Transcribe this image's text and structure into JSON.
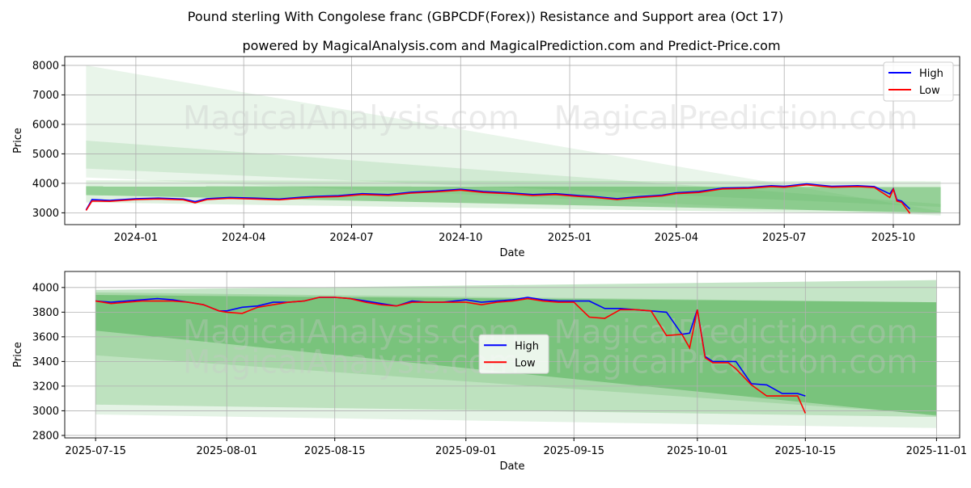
{
  "title": "Pound sterling With Congolese franc (GBPCDF(Forex)) Resistance and Support area (Oct 17)",
  "subtitle": "powered by MagicalAnalysis.com and MagicalPrediction.com and Predict-Price.com",
  "watermark": [
    "MagicalAnalysis.com",
    "MagicalPrediction.com"
  ],
  "colors": {
    "high": "#0000ff",
    "low": "#ff0000",
    "band": "#4caf50"
  },
  "chart_data": [
    {
      "type": "line",
      "xlabel": "Date",
      "ylabel": "Price",
      "xlim": [
        "2023-11-02",
        "2025-11-26"
      ],
      "ylim": [
        2600,
        8300
      ],
      "grid": true,
      "legend": "top-right",
      "x_ticks": [
        "2024-01",
        "2024-04",
        "2024-07",
        "2024-10",
        "2025-01",
        "2025-04",
        "2025-07",
        "2025-10"
      ],
      "x_tick_dates": [
        "2024-01-01",
        "2024-04-01",
        "2024-07-01",
        "2024-10-01",
        "2025-01-01",
        "2025-04-01",
        "2025-07-01",
        "2025-10-01"
      ],
      "y_ticks": [
        3000,
        4000,
        5000,
        6000,
        7000,
        8000
      ],
      "bands": [
        {
          "x": [
            "2023-11-20",
            "2025-11-10"
          ],
          "upper": [
            8000,
            3050
          ],
          "lower": [
            4200,
            2900
          ],
          "opacity": 0.12
        },
        {
          "x": [
            "2023-11-20",
            "2025-11-10"
          ],
          "upper": [
            5450,
            3300
          ],
          "lower": [
            4500,
            3200
          ],
          "opacity": 0.15
        },
        {
          "x": [
            "2023-11-20",
            "2025-11-10"
          ],
          "upper": [
            4100,
            4070
          ],
          "lower": [
            3350,
            2950
          ],
          "opacity": 0.18
        },
        {
          "x": [
            "2023-11-20",
            "2025-11-10"
          ],
          "upper": [
            3900,
            3880
          ],
          "lower": [
            3600,
            3000
          ],
          "opacity": 0.5
        }
      ],
      "series": [
        {
          "name": "High",
          "x": [
            "2023-11-20",
            "2023-11-25",
            "2023-12-10",
            "2024-01-01",
            "2024-01-20",
            "2024-02-10",
            "2024-02-20",
            "2024-03-01",
            "2024-03-20",
            "2024-04-10",
            "2024-05-01",
            "2024-05-20",
            "2024-06-01",
            "2024-06-20",
            "2024-07-10",
            "2024-08-01",
            "2024-08-20",
            "2024-09-10",
            "2024-10-01",
            "2024-10-20",
            "2024-11-10",
            "2024-12-01",
            "2024-12-20",
            "2025-01-10",
            "2025-01-20",
            "2025-02-10",
            "2025-03-01",
            "2025-03-20",
            "2025-04-01",
            "2025-04-20",
            "2025-05-10",
            "2025-06-01",
            "2025-06-20",
            "2025-07-01",
            "2025-07-20",
            "2025-08-10",
            "2025-09-01",
            "2025-09-15",
            "2025-09-28",
            "2025-10-01",
            "2025-10-04",
            "2025-10-08",
            "2025-10-15"
          ],
          "values": [
            3100,
            3450,
            3420,
            3480,
            3500,
            3470,
            3380,
            3480,
            3520,
            3500,
            3470,
            3530,
            3560,
            3580,
            3650,
            3620,
            3700,
            3740,
            3800,
            3720,
            3680,
            3620,
            3650,
            3580,
            3560,
            3480,
            3550,
            3600,
            3680,
            3720,
            3840,
            3860,
            3920,
            3900,
            3980,
            3900,
            3920,
            3890,
            3640,
            3820,
            3440,
            3400,
            3130
          ]
        },
        {
          "name": "Low",
          "x": [
            "2023-11-20",
            "2023-11-25",
            "2023-12-10",
            "2024-01-01",
            "2024-01-20",
            "2024-02-10",
            "2024-02-20",
            "2024-03-01",
            "2024-03-20",
            "2024-04-10",
            "2024-05-01",
            "2024-05-20",
            "2024-06-01",
            "2024-06-20",
            "2024-07-10",
            "2024-08-01",
            "2024-08-20",
            "2024-09-10",
            "2024-10-01",
            "2024-10-20",
            "2024-11-10",
            "2024-12-01",
            "2024-12-20",
            "2025-01-10",
            "2025-01-20",
            "2025-02-10",
            "2025-03-01",
            "2025-03-20",
            "2025-04-01",
            "2025-04-20",
            "2025-05-10",
            "2025-06-01",
            "2025-06-20",
            "2025-07-01",
            "2025-07-20",
            "2025-08-10",
            "2025-09-01",
            "2025-09-15",
            "2025-09-28",
            "2025-10-01",
            "2025-10-04",
            "2025-10-08",
            "2025-10-15"
          ],
          "values": [
            3080,
            3400,
            3390,
            3450,
            3470,
            3440,
            3340,
            3450,
            3490,
            3470,
            3440,
            3500,
            3530,
            3550,
            3620,
            3590,
            3670,
            3710,
            3770,
            3690,
            3650,
            3590,
            3620,
            3550,
            3530,
            3450,
            3520,
            3570,
            3650,
            3690,
            3810,
            3830,
            3890,
            3870,
            3950,
            3870,
            3890,
            3860,
            3520,
            3800,
            3400,
            3360,
            2980
          ]
        }
      ]
    },
    {
      "type": "line",
      "xlabel": "Date",
      "ylabel": "Price",
      "xlim": [
        "2025-07-11",
        "2025-11-04"
      ],
      "ylim": [
        2780,
        4130
      ],
      "grid": true,
      "legend": "center",
      "x_ticks": [
        "2025-07-15",
        "2025-08-01",
        "2025-08-15",
        "2025-09-01",
        "2025-09-15",
        "2025-10-01",
        "2025-10-15",
        "2025-11-01"
      ],
      "x_tick_dates": [
        "2025-07-15",
        "2025-08-01",
        "2025-08-15",
        "2025-09-01",
        "2025-09-15",
        "2025-10-01",
        "2025-10-15",
        "2025-11-01"
      ],
      "y_ticks": [
        2800,
        3000,
        3200,
        3400,
        3600,
        3800,
        4000
      ],
      "bands": [
        {
          "x": [
            "2025-07-15",
            "2025-11-01"
          ],
          "upper": [
            3980,
            4060
          ],
          "lower": [
            2970,
            2860
          ],
          "opacity": 0.15
        },
        {
          "x": [
            "2025-07-15",
            "2025-11-01"
          ],
          "upper": [
            3960,
            3880
          ],
          "lower": [
            3050,
            2950
          ],
          "opacity": 0.25
        },
        {
          "x": [
            "2025-07-15",
            "2025-11-01"
          ],
          "upper": [
            3940,
            3880
          ],
          "lower": [
            3650,
            2960
          ],
          "opacity": 0.5
        },
        {
          "x": [
            "2025-07-15",
            "2025-11-01"
          ],
          "upper": [
            3980,
            4060
          ],
          "lower": [
            3450,
            2970
          ],
          "opacity": 0.2
        }
      ],
      "series": [
        {
          "name": "High",
          "x": [
            "2025-07-15",
            "2025-07-17",
            "2025-07-19",
            "2025-07-21",
            "2025-07-23",
            "2025-07-25",
            "2025-07-27",
            "2025-07-29",
            "2025-07-31",
            "2025-08-01",
            "2025-08-03",
            "2025-08-05",
            "2025-08-07",
            "2025-08-09",
            "2025-08-11",
            "2025-08-13",
            "2025-08-15",
            "2025-08-17",
            "2025-08-19",
            "2025-08-21",
            "2025-08-23",
            "2025-08-25",
            "2025-08-27",
            "2025-08-29",
            "2025-09-01",
            "2025-09-03",
            "2025-09-05",
            "2025-09-07",
            "2025-09-09",
            "2025-09-11",
            "2025-09-13",
            "2025-09-15",
            "2025-09-17",
            "2025-09-19",
            "2025-09-21",
            "2025-09-23",
            "2025-09-25",
            "2025-09-27",
            "2025-09-29",
            "2025-09-30",
            "2025-10-01",
            "2025-10-02",
            "2025-10-03",
            "2025-10-05",
            "2025-10-06",
            "2025-10-08",
            "2025-10-10",
            "2025-10-12",
            "2025-10-14",
            "2025-10-15"
          ],
          "values": [
            3890,
            3880,
            3890,
            3900,
            3910,
            3900,
            3880,
            3860,
            3810,
            3810,
            3840,
            3850,
            3880,
            3880,
            3890,
            3920,
            3920,
            3910,
            3890,
            3870,
            3850,
            3890,
            3880,
            3880,
            3900,
            3880,
            3890,
            3900,
            3920,
            3900,
            3890,
            3890,
            3890,
            3830,
            3830,
            3820,
            3810,
            3800,
            3620,
            3630,
            3820,
            3440,
            3400,
            3400,
            3400,
            3220,
            3210,
            3140,
            3140,
            3120
          ]
        },
        {
          "name": "Low",
          "x": [
            "2025-07-15",
            "2025-07-17",
            "2025-07-19",
            "2025-07-21",
            "2025-07-23",
            "2025-07-25",
            "2025-07-27",
            "2025-07-29",
            "2025-07-31",
            "2025-08-01",
            "2025-08-03",
            "2025-08-05",
            "2025-08-07",
            "2025-08-09",
            "2025-08-11",
            "2025-08-13",
            "2025-08-15",
            "2025-08-17",
            "2025-08-19",
            "2025-08-21",
            "2025-08-23",
            "2025-08-25",
            "2025-08-27",
            "2025-08-29",
            "2025-09-01",
            "2025-09-03",
            "2025-09-05",
            "2025-09-07",
            "2025-09-09",
            "2025-09-11",
            "2025-09-13",
            "2025-09-15",
            "2025-09-17",
            "2025-09-19",
            "2025-09-21",
            "2025-09-23",
            "2025-09-25",
            "2025-09-27",
            "2025-09-29",
            "2025-09-30",
            "2025-10-01",
            "2025-10-02",
            "2025-10-03",
            "2025-10-05",
            "2025-10-06",
            "2025-10-08",
            "2025-10-10",
            "2025-10-12",
            "2025-10-14",
            "2025-10-15"
          ],
          "values": [
            3890,
            3870,
            3880,
            3890,
            3890,
            3890,
            3880,
            3860,
            3810,
            3800,
            3790,
            3840,
            3860,
            3880,
            3890,
            3920,
            3920,
            3910,
            3880,
            3860,
            3850,
            3880,
            3880,
            3880,
            3880,
            3860,
            3880,
            3890,
            3910,
            3890,
            3880,
            3880,
            3760,
            3750,
            3820,
            3820,
            3810,
            3610,
            3620,
            3510,
            3820,
            3430,
            3390,
            3390,
            3340,
            3210,
            3120,
            3120,
            3120,
            2980
          ]
        }
      ]
    }
  ]
}
